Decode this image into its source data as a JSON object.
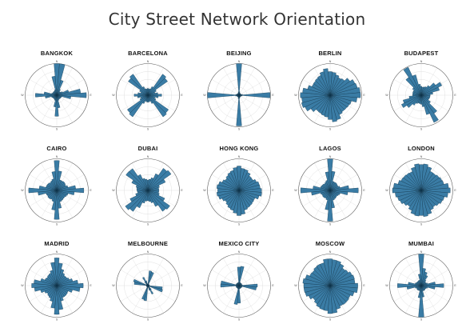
{
  "title": "City Street Network Orientation",
  "colors": {
    "bar_fill": "#3a7ca5",
    "bar_stroke": "#0c2f44",
    "grid": "#c8c8c8",
    "circle": "#555555"
  },
  "direction_labels": {
    "n": "N",
    "e": "E",
    "s": "S",
    "w": "W"
  },
  "cities": [
    {
      "name": "BANGKOK"
    },
    {
      "name": "BARCELONA"
    },
    {
      "name": "BEIJING"
    },
    {
      "name": "BERLIN"
    },
    {
      "name": "BUDAPEST"
    },
    {
      "name": "CAIRO"
    },
    {
      "name": "DUBAI"
    },
    {
      "name": "HONG KONG"
    },
    {
      "name": "LAGOS"
    },
    {
      "name": "LONDON"
    },
    {
      "name": "MADRID"
    },
    {
      "name": "MELBOURNE"
    },
    {
      "name": "MEXICO CITY"
    },
    {
      "name": "MOSCOW"
    },
    {
      "name": "MUMBAI"
    }
  ],
  "chart_data": [
    {
      "type": "polar-histogram",
      "city": "BANGKOK",
      "bins": 36,
      "base": 0.15,
      "peaks": [
        [
          0,
          0.85,
          8
        ],
        [
          90,
          0.55,
          8
        ],
        [
          270,
          0.55,
          8
        ],
        [
          180,
          0.55,
          8
        ],
        [
          10,
          0.5,
          10
        ],
        [
          80,
          0.4,
          10
        ]
      ]
    },
    {
      "type": "polar-histogram",
      "city": "BARCELONA",
      "bins": 36,
      "base": 0.22,
      "peaks": [
        [
          45,
          0.8,
          7
        ],
        [
          135,
          0.8,
          7
        ],
        [
          225,
          0.8,
          7
        ],
        [
          315,
          0.8,
          7
        ],
        [
          90,
          0.25,
          8
        ],
        [
          270,
          0.25,
          8
        ]
      ]
    },
    {
      "type": "polar-histogram",
      "city": "BEIJING",
      "bins": 36,
      "base": 0.07,
      "peaks": [
        [
          0,
          0.95,
          4
        ],
        [
          180,
          0.95,
          4
        ],
        [
          90,
          0.95,
          4
        ],
        [
          270,
          0.95,
          4
        ]
      ]
    },
    {
      "type": "polar-histogram",
      "city": "BERLIN",
      "bins": 36,
      "base": 0.55,
      "peaks": [
        [
          80,
          0.45,
          25
        ],
        [
          260,
          0.45,
          25
        ],
        [
          350,
          0.3,
          20
        ],
        [
          170,
          0.3,
          20
        ]
      ]
    },
    {
      "type": "polar-histogram",
      "city": "BUDAPEST",
      "bins": 36,
      "base": 0.28,
      "peaks": [
        [
          330,
          0.7,
          10
        ],
        [
          150,
          0.7,
          10
        ],
        [
          60,
          0.45,
          12
        ],
        [
          240,
          0.45,
          12
        ]
      ]
    },
    {
      "type": "polar-histogram",
      "city": "CAIRO",
      "bins": 36,
      "base": 0.35,
      "peaks": [
        [
          0,
          0.6,
          8
        ],
        [
          90,
          0.55,
          8
        ],
        [
          180,
          0.6,
          8
        ],
        [
          270,
          0.55,
          8
        ]
      ]
    },
    {
      "type": "polar-histogram",
      "city": "DUBAI",
      "bins": 36,
      "base": 0.35,
      "peaks": [
        [
          45,
          0.6,
          12
        ],
        [
          135,
          0.55,
          12
        ],
        [
          225,
          0.6,
          12
        ],
        [
          315,
          0.55,
          12
        ]
      ]
    },
    {
      "type": "polar-histogram",
      "city": "HONG KONG",
      "bins": 36,
      "base": 0.55,
      "peaks": [
        [
          0,
          0.25,
          20
        ],
        [
          90,
          0.2,
          20
        ],
        [
          180,
          0.25,
          20
        ],
        [
          270,
          0.2,
          20
        ]
      ]
    },
    {
      "type": "polar-histogram",
      "city": "LAGOS",
      "bins": 36,
      "base": 0.3,
      "peaks": [
        [
          0,
          0.7,
          8
        ],
        [
          90,
          0.65,
          8
        ],
        [
          180,
          0.7,
          8
        ],
        [
          270,
          0.65,
          8
        ]
      ]
    },
    {
      "type": "polar-histogram",
      "city": "LONDON",
      "bins": 36,
      "base": 0.62,
      "peaks": [
        [
          90,
          0.3,
          22
        ],
        [
          270,
          0.3,
          22
        ],
        [
          0,
          0.25,
          22
        ],
        [
          180,
          0.25,
          22
        ]
      ]
    },
    {
      "type": "polar-histogram",
      "city": "MADRID",
      "bins": 36,
      "base": 0.42,
      "peaks": [
        [
          0,
          0.5,
          12
        ],
        [
          90,
          0.45,
          12
        ],
        [
          180,
          0.5,
          12
        ],
        [
          270,
          0.45,
          12
        ]
      ]
    },
    {
      "type": "polar-histogram",
      "city": "MELBOURNE",
      "bins": 36,
      "base": 0.05,
      "peaks": [
        [
          15,
          0.95,
          4
        ],
        [
          195,
          0.95,
          4
        ],
        [
          105,
          0.95,
          4
        ],
        [
          285,
          0.95,
          4
        ],
        [
          150,
          0.25,
          8
        ],
        [
          330,
          0.25,
          8
        ]
      ]
    },
    {
      "type": "polar-histogram",
      "city": "MEXICO CITY",
      "bins": 36,
      "base": 0.1,
      "peaks": [
        [
          5,
          0.85,
          5
        ],
        [
          185,
          0.85,
          5
        ],
        [
          95,
          0.8,
          5
        ],
        [
          275,
          0.8,
          5
        ]
      ]
    },
    {
      "type": "polar-histogram",
      "city": "MOSCOW",
      "bins": 36,
      "base": 0.7,
      "peaks": [
        [
          0,
          0.2,
          20
        ],
        [
          90,
          0.2,
          20
        ],
        [
          180,
          0.2,
          20
        ],
        [
          270,
          0.2,
          20
        ]
      ]
    },
    {
      "type": "polar-histogram",
      "city": "MUMBAI",
      "bins": 36,
      "base": 0.18,
      "peaks": [
        [
          0,
          0.85,
          6
        ],
        [
          180,
          0.85,
          6
        ],
        [
          90,
          0.6,
          8
        ],
        [
          270,
          0.6,
          8
        ],
        [
          20,
          0.3,
          10
        ]
      ]
    }
  ]
}
